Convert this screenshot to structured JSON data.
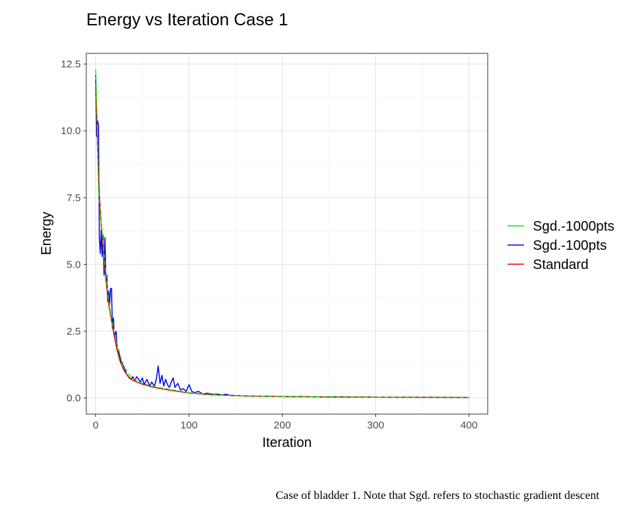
{
  "chart_data": {
    "type": "line",
    "title": "Energy vs Iteration Case 1",
    "xlabel": "Iteration",
    "ylabel": "Energy",
    "xlim": [
      -10,
      420
    ],
    "ylim": [
      -0.6,
      12.9
    ],
    "xticks": [
      0,
      100,
      200,
      300,
      400
    ],
    "xtick_labels": [
      "0",
      "100",
      "200",
      "300",
      "400"
    ],
    "yticks": [
      0,
      2.5,
      5,
      7.5,
      10,
      12.5
    ],
    "ytick_labels": [
      "0.0",
      "2.5",
      "5.0",
      "7.5",
      "10.0",
      "12.5"
    ],
    "grid": true,
    "legend_position": "right",
    "series": [
      {
        "name": "Sgd.-1000pts",
        "color": "#00ee00",
        "dash": "6,4",
        "points": [
          [
            0,
            12.3
          ],
          [
            2,
            9.8
          ],
          [
            3,
            7.8
          ],
          [
            5,
            6.9
          ],
          [
            7,
            6.2
          ],
          [
            9,
            5.4
          ],
          [
            11,
            4.6
          ],
          [
            13,
            4.0
          ],
          [
            15,
            3.4
          ],
          [
            18,
            2.8
          ],
          [
            21,
            2.3
          ],
          [
            24,
            1.9
          ],
          [
            27,
            1.5
          ],
          [
            30,
            1.2
          ],
          [
            35,
            0.9
          ],
          [
            40,
            0.72
          ],
          [
            50,
            0.55
          ],
          [
            60,
            0.45
          ],
          [
            70,
            0.38
          ],
          [
            80,
            0.32
          ],
          [
            90,
            0.26
          ],
          [
            100,
            0.2
          ],
          [
            120,
            0.14
          ],
          [
            150,
            0.09
          ],
          [
            200,
            0.06
          ],
          [
            250,
            0.045
          ],
          [
            300,
            0.035
          ],
          [
            350,
            0.03
          ],
          [
            400,
            0.025
          ]
        ]
      },
      {
        "name": "Sgd.-100pts",
        "color": "#0000ee",
        "dash": "",
        "points": [
          [
            0,
            12.1
          ],
          [
            1,
            9.8
          ],
          [
            2,
            10.4
          ],
          [
            3,
            10.2
          ],
          [
            4,
            6.0
          ],
          [
            5,
            5.4
          ],
          [
            6,
            6.3
          ],
          [
            7,
            5.3
          ],
          [
            8,
            6.1
          ],
          [
            9,
            4.6
          ],
          [
            10,
            6.0
          ],
          [
            11,
            4.4
          ],
          [
            12,
            4.6
          ],
          [
            13,
            3.6
          ],
          [
            14,
            4.0
          ],
          [
            15,
            3.5
          ],
          [
            16,
            4.1
          ],
          [
            17,
            4.1
          ],
          [
            18,
            2.6
          ],
          [
            19,
            3.0
          ],
          [
            20,
            2.3
          ],
          [
            22,
            2.5
          ],
          [
            23,
            1.8
          ],
          [
            25,
            1.7
          ],
          [
            27,
            1.4
          ],
          [
            30,
            1.2
          ],
          [
            33,
            0.9
          ],
          [
            36,
            0.75
          ],
          [
            38,
            0.7
          ],
          [
            40,
            0.8
          ],
          [
            42,
            0.65
          ],
          [
            44,
            0.8
          ],
          [
            46,
            0.7
          ],
          [
            48,
            0.6
          ],
          [
            50,
            0.75
          ],
          [
            52,
            0.5
          ],
          [
            55,
            0.7
          ],
          [
            58,
            0.45
          ],
          [
            60,
            0.6
          ],
          [
            63,
            0.45
          ],
          [
            65,
            0.7
          ],
          [
            67,
            1.2
          ],
          [
            69,
            0.55
          ],
          [
            71,
            0.85
          ],
          [
            73,
            0.45
          ],
          [
            75,
            0.7
          ],
          [
            77,
            0.5
          ],
          [
            79,
            0.4
          ],
          [
            81,
            0.6
          ],
          [
            83,
            0.75
          ],
          [
            85,
            0.4
          ],
          [
            88,
            0.55
          ],
          [
            91,
            0.3
          ],
          [
            94,
            0.35
          ],
          [
            97,
            0.25
          ],
          [
            100,
            0.5
          ],
          [
            103,
            0.25
          ],
          [
            106,
            0.2
          ],
          [
            110,
            0.25
          ],
          [
            115,
            0.15
          ],
          [
            120,
            0.18
          ],
          [
            125,
            0.14
          ],
          [
            130,
            0.15
          ],
          [
            135,
            0.12
          ],
          [
            140,
            0.14
          ],
          [
            145,
            0.1
          ],
          [
            150,
            0.09
          ],
          [
            160,
            0.08
          ],
          [
            170,
            0.07
          ],
          [
            180,
            0.07
          ],
          [
            190,
            0.06
          ],
          [
            200,
            0.06
          ],
          [
            210,
            0.05
          ],
          [
            220,
            0.055
          ],
          [
            230,
            0.05
          ],
          [
            240,
            0.045
          ],
          [
            250,
            0.04
          ],
          [
            260,
            0.045
          ],
          [
            270,
            0.04
          ],
          [
            280,
            0.035
          ],
          [
            290,
            0.04
          ],
          [
            300,
            0.035
          ],
          [
            310,
            0.03
          ],
          [
            320,
            0.035
          ],
          [
            330,
            0.03
          ],
          [
            340,
            0.03
          ],
          [
            350,
            0.028
          ],
          [
            360,
            0.03
          ],
          [
            370,
            0.025
          ],
          [
            380,
            0.025
          ],
          [
            390,
            0.022
          ],
          [
            400,
            0.02
          ]
        ]
      },
      {
        "name": "Standard",
        "color": "#ee0000",
        "dash": "",
        "points": [
          [
            0,
            11.8
          ],
          [
            2,
            9.5
          ],
          [
            4,
            7.6
          ],
          [
            6,
            6.5
          ],
          [
            8,
            5.6
          ],
          [
            10,
            4.8
          ],
          [
            12,
            4.1
          ],
          [
            14,
            3.5
          ],
          [
            17,
            2.9
          ],
          [
            20,
            2.3
          ],
          [
            23,
            1.8
          ],
          [
            26,
            1.4
          ],
          [
            30,
            1.05
          ],
          [
            35,
            0.8
          ],
          [
            40,
            0.66
          ],
          [
            50,
            0.52
          ],
          [
            60,
            0.42
          ],
          [
            70,
            0.35
          ],
          [
            80,
            0.29
          ],
          [
            90,
            0.24
          ],
          [
            100,
            0.19
          ],
          [
            120,
            0.13
          ],
          [
            150,
            0.085
          ],
          [
            200,
            0.055
          ],
          [
            250,
            0.042
          ],
          [
            300,
            0.033
          ],
          [
            350,
            0.028
          ],
          [
            400,
            0.023
          ]
        ]
      }
    ]
  },
  "caption": "Case of bladder 1. Note that Sgd. refers to stochastic gradient descent"
}
